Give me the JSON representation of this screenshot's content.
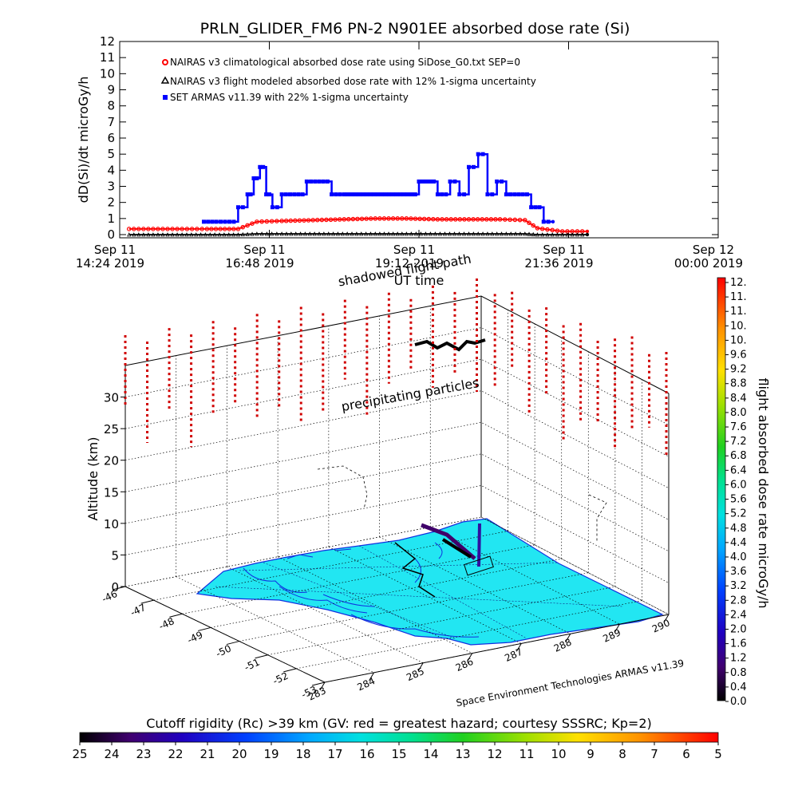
{
  "chart_data": [
    {
      "type": "line",
      "title": "PRLN_GLIDER_FM6 PN-2 N901EE absorbed dose rate (Si)",
      "ylabel": "dD(Si)/dt microGy/h",
      "xlabel": "UT time",
      "ylim": [
        0,
        12
      ],
      "y_ticks": [
        "0",
        "1",
        "2",
        "3",
        "4",
        "5",
        "6",
        "7",
        "8",
        "9",
        "10",
        "11",
        "12"
      ],
      "xlim_hours": [
        14.4,
        24.0
      ],
      "x_ticks": [
        {
          "day": "Sep 11",
          "time": "14:24 2019"
        },
        {
          "day": "Sep 11",
          "time": "16:48 2019"
        },
        {
          "day": "Sep 11",
          "time": "19:12 2019"
        },
        {
          "day": "Sep 11",
          "time": "21:36 2019"
        },
        {
          "day": "Sep 12",
          "time": "00:00 2019"
        }
      ],
      "legend_position": "top-left",
      "series": [
        {
          "name": "NAIRAS v3 climatological absorbed dose rate using SiDose_G0.txt SEP=0",
          "color": "#ff0000",
          "marker": "circle",
          "x_hours": [
            14.55,
            15.4,
            15.8,
            16.3,
            16.6,
            17.0,
            17.5,
            18.0,
            18.5,
            19.0,
            19.5,
            20.0,
            20.5,
            20.9,
            21.1,
            21.5,
            21.9
          ],
          "values": [
            0.35,
            0.35,
            0.35,
            0.35,
            0.8,
            0.85,
            0.9,
            0.95,
            1.0,
            1.0,
            0.95,
            0.95,
            0.95,
            0.9,
            0.4,
            0.2,
            0.2
          ]
        },
        {
          "name": "NAIRAS v3 flight modeled absorbed dose rate with 12% 1-sigma uncertainty",
          "color": "#000000",
          "marker": "triangle",
          "x_hours": [
            14.55,
            15.4,
            16.3,
            16.6,
            17.0,
            18.5,
            19.0,
            20.0,
            20.9,
            21.1,
            21.9
          ],
          "values": [
            0.0,
            0.0,
            0.0,
            0.05,
            0.05,
            0.05,
            0.05,
            0.05,
            0.05,
            0.0,
            0.0
          ]
        },
        {
          "name": "SET ARMAS v11.39 with 22% 1-sigma uncertainty",
          "color": "#0000ff",
          "marker": "square",
          "x_hours": [
            15.75,
            15.95,
            16.3,
            16.45,
            16.55,
            16.65,
            16.75,
            16.85,
            17.0,
            17.2,
            17.4,
            17.6,
            17.8,
            18.0,
            18.3,
            18.6,
            18.9,
            19.2,
            19.5,
            19.7,
            19.85,
            20.0,
            20.15,
            20.3,
            20.45,
            20.6,
            20.8,
            21.0,
            21.2,
            21.35
          ],
          "values": [
            0.8,
            0.8,
            1.7,
            2.5,
            3.5,
            4.2,
            2.5,
            1.7,
            2.5,
            2.5,
            3.3,
            3.3,
            2.5,
            2.5,
            2.5,
            2.5,
            2.5,
            3.3,
            2.5,
            3.3,
            2.5,
            4.2,
            5.0,
            2.5,
            3.3,
            2.5,
            2.5,
            1.7,
            0.8,
            0.8
          ]
        }
      ]
    },
    {
      "type": "scatter",
      "subtype": "3d",
      "ylabel": "Altitude (km)",
      "zlim": [
        0,
        35
      ],
      "z_ticks": [
        "0",
        "5",
        "10",
        "15",
        "20",
        "25",
        "30"
      ],
      "lat_ticks": [
        "-46",
        "-47",
        "-48",
        "-49",
        "-50",
        "-51",
        "-52",
        "-53"
      ],
      "lon_ticks": [
        "283",
        "284",
        "285",
        "286",
        "287",
        "288",
        "289",
        "290"
      ],
      "annotations": [
        "shadowed flight path",
        "precipitating particles"
      ],
      "credit": "Space Environment Technologies ARMAS v11.39",
      "right_colorbar": {
        "label": "flight absorbed dose rate microGy/h",
        "ticks": [
          "12.",
          "11.",
          "11.",
          "10.",
          "10.",
          "9.6",
          "9.2",
          "8.8",
          "8.4",
          "8.0",
          "7.6",
          "7.2",
          "6.8",
          "6.4",
          "6.0",
          "5.6",
          "5.2",
          "4.8",
          "4.4",
          "4.0",
          "3.6",
          "3.2",
          "2.8",
          "2.4",
          "2.0",
          "1.6",
          "1.2",
          "0.8",
          "0.4",
          "0.0"
        ]
      },
      "bottom_colorbar": {
        "label": "Cutoff rigidity (Rc) >39 km (GV: red = greatest hazard; courtesy SSSRC; Kp=2)",
        "ticks": [
          "25",
          "24",
          "23",
          "22",
          "21",
          "20",
          "19",
          "18",
          "17",
          "16",
          "15",
          "14",
          "13",
          "12",
          "11",
          "10",
          "9",
          "8",
          "7",
          "6",
          "5"
        ]
      },
      "map_fill_color": "#22e6f2",
      "coast_color": "#1030e0",
      "column_color": "#d00000"
    }
  ]
}
